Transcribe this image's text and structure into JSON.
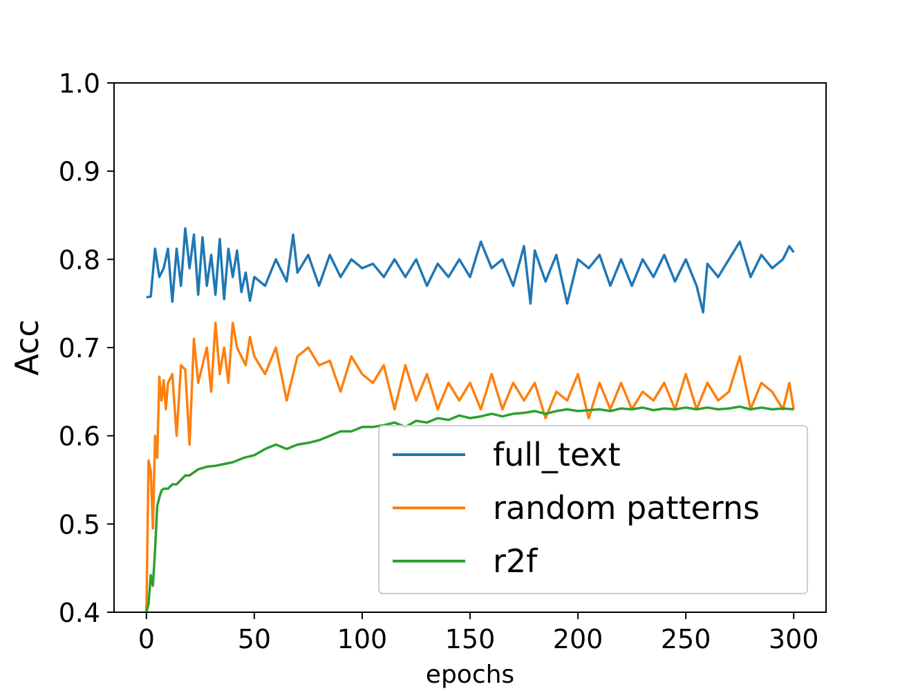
{
  "chart_data": {
    "type": "line",
    "title": "",
    "xlabel": "epochs",
    "ylabel": "Acc",
    "xlim": [
      -15,
      315
    ],
    "ylim": [
      0.4,
      1.0
    ],
    "grid": false,
    "legend_position": "lower-right",
    "x_ticks": [
      "0",
      "50",
      "100",
      "150",
      "200",
      "250",
      "300"
    ],
    "x_tick_values": [
      0,
      50,
      100,
      150,
      200,
      250,
      300
    ],
    "y_ticks": [
      "0.4",
      "0.5",
      "0.6",
      "0.7",
      "0.8",
      "0.9",
      "1.0"
    ],
    "y_tick_values": [
      0.4,
      0.5,
      0.6,
      0.7,
      0.8,
      0.9,
      1.0
    ],
    "series": [
      {
        "name": "full_text",
        "color": "#1f77b4",
        "x": [
          0,
          2,
          4,
          6,
          8,
          10,
          12,
          14,
          16,
          18,
          20,
          22,
          24,
          26,
          28,
          30,
          32,
          34,
          36,
          38,
          40,
          42,
          44,
          46,
          48,
          50,
          55,
          60,
          65,
          68,
          70,
          75,
          80,
          85,
          90,
          95,
          100,
          105,
          110,
          115,
          120,
          125,
          130,
          135,
          140,
          145,
          150,
          155,
          160,
          165,
          170,
          175,
          178,
          180,
          185,
          190,
          195,
          200,
          205,
          210,
          215,
          220,
          225,
          230,
          235,
          240,
          245,
          250,
          255,
          258,
          260,
          265,
          270,
          275,
          280,
          285,
          290,
          295,
          298,
          300
        ],
        "values": [
          0.757,
          0.758,
          0.812,
          0.78,
          0.79,
          0.812,
          0.752,
          0.812,
          0.77,
          0.835,
          0.79,
          0.828,
          0.76,
          0.825,
          0.77,
          0.805,
          0.76,
          0.823,
          0.755,
          0.812,
          0.78,
          0.81,
          0.763,
          0.785,
          0.753,
          0.78,
          0.77,
          0.8,
          0.775,
          0.828,
          0.785,
          0.805,
          0.77,
          0.805,
          0.78,
          0.8,
          0.79,
          0.795,
          0.78,
          0.8,
          0.78,
          0.8,
          0.77,
          0.795,
          0.78,
          0.8,
          0.78,
          0.82,
          0.79,
          0.8,
          0.77,
          0.815,
          0.75,
          0.81,
          0.775,
          0.805,
          0.75,
          0.8,
          0.79,
          0.805,
          0.77,
          0.8,
          0.77,
          0.8,
          0.78,
          0.805,
          0.775,
          0.8,
          0.77,
          0.74,
          0.795,
          0.78,
          0.8,
          0.82,
          0.78,
          0.805,
          0.79,
          0.8,
          0.815,
          0.808
        ]
      },
      {
        "name": "random patterns",
        "color": "#ff7f0e",
        "x": [
          0,
          1,
          2,
          3,
          4,
          5,
          6,
          7,
          8,
          9,
          10,
          12,
          14,
          16,
          18,
          20,
          22,
          24,
          26,
          28,
          30,
          32,
          34,
          36,
          38,
          40,
          42,
          44,
          46,
          48,
          50,
          55,
          60,
          65,
          70,
          75,
          80,
          85,
          90,
          95,
          100,
          105,
          110,
          115,
          120,
          125,
          130,
          135,
          140,
          145,
          150,
          155,
          160,
          165,
          170,
          175,
          180,
          185,
          190,
          195,
          200,
          205,
          210,
          215,
          220,
          225,
          230,
          235,
          240,
          245,
          250,
          255,
          260,
          265,
          270,
          275,
          280,
          285,
          290,
          295,
          298,
          300
        ],
        "values": [
          0.4,
          0.572,
          0.56,
          0.495,
          0.6,
          0.575,
          0.667,
          0.64,
          0.663,
          0.63,
          0.66,
          0.67,
          0.6,
          0.68,
          0.675,
          0.59,
          0.71,
          0.66,
          0.68,
          0.7,
          0.65,
          0.728,
          0.67,
          0.7,
          0.66,
          0.728,
          0.7,
          0.69,
          0.68,
          0.712,
          0.69,
          0.67,
          0.7,
          0.64,
          0.69,
          0.7,
          0.68,
          0.685,
          0.65,
          0.69,
          0.67,
          0.66,
          0.68,
          0.63,
          0.68,
          0.64,
          0.67,
          0.63,
          0.66,
          0.64,
          0.66,
          0.63,
          0.67,
          0.63,
          0.66,
          0.64,
          0.66,
          0.62,
          0.65,
          0.64,
          0.67,
          0.62,
          0.66,
          0.63,
          0.66,
          0.63,
          0.65,
          0.64,
          0.66,
          0.63,
          0.67,
          0.63,
          0.66,
          0.64,
          0.65,
          0.69,
          0.63,
          0.66,
          0.65,
          0.63,
          0.66,
          0.63
        ]
      },
      {
        "name": "r2f",
        "color": "#2ca02c",
        "x": [
          0,
          1,
          2,
          3,
          4,
          5,
          6,
          7,
          8,
          10,
          12,
          14,
          16,
          18,
          20,
          24,
          28,
          32,
          36,
          40,
          45,
          50,
          55,
          60,
          65,
          70,
          75,
          80,
          85,
          90,
          95,
          100,
          105,
          110,
          115,
          120,
          125,
          130,
          135,
          140,
          145,
          150,
          155,
          160,
          165,
          170,
          175,
          180,
          185,
          190,
          195,
          200,
          205,
          210,
          215,
          220,
          225,
          230,
          235,
          240,
          245,
          250,
          255,
          260,
          265,
          270,
          275,
          280,
          285,
          290,
          295,
          300
        ],
        "values": [
          0.4,
          0.41,
          0.442,
          0.43,
          0.47,
          0.52,
          0.53,
          0.538,
          0.54,
          0.54,
          0.545,
          0.545,
          0.55,
          0.555,
          0.555,
          0.562,
          0.565,
          0.566,
          0.568,
          0.57,
          0.575,
          0.578,
          0.585,
          0.59,
          0.585,
          0.59,
          0.592,
          0.595,
          0.6,
          0.605,
          0.605,
          0.61,
          0.61,
          0.612,
          0.615,
          0.61,
          0.617,
          0.615,
          0.62,
          0.618,
          0.623,
          0.62,
          0.622,
          0.625,
          0.622,
          0.625,
          0.626,
          0.628,
          0.625,
          0.628,
          0.63,
          0.628,
          0.629,
          0.63,
          0.628,
          0.631,
          0.63,
          0.632,
          0.629,
          0.631,
          0.63,
          0.632,
          0.63,
          0.632,
          0.63,
          0.631,
          0.633,
          0.63,
          0.632,
          0.63,
          0.631,
          0.63
        ]
      }
    ]
  }
}
